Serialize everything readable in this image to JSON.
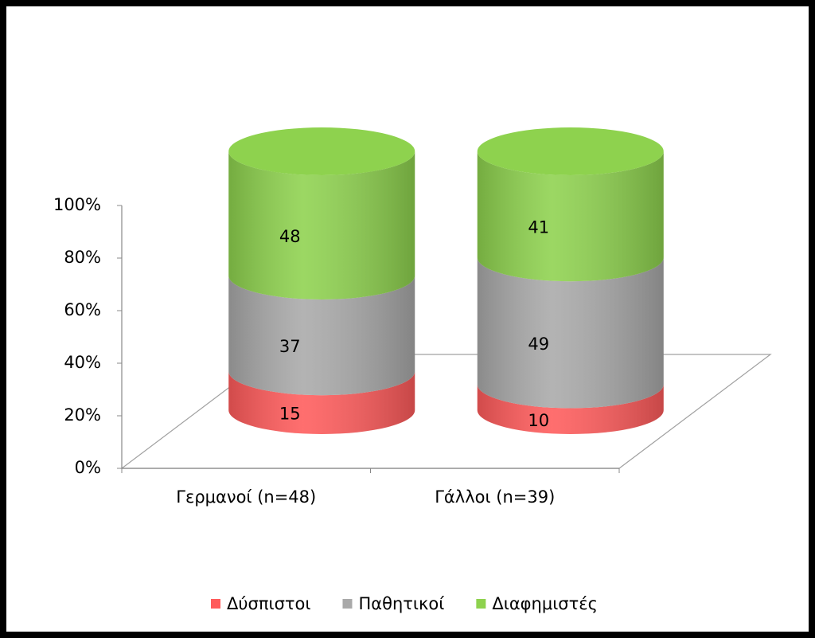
{
  "chart_data": {
    "type": "cylinder",
    "categories": [
      "Γερμανοί (n=48)",
      "Γάλλοι (n=39)"
    ],
    "series": [
      {
        "name": "Δύσπιστοι",
        "color": "#ff5b5b",
        "values": [
          15,
          10
        ]
      },
      {
        "name": "Παθητικοί",
        "color": "#a9a9a9",
        "values": [
          37,
          49
        ]
      },
      {
        "name": "Διαφημιστές",
        "color": "#8ed24e",
        "values": [
          48,
          41
        ]
      }
    ],
    "ylim": [
      0,
      100
    ],
    "yticks": [
      {
        "value": 0,
        "label": "0%"
      },
      {
        "value": 20,
        "label": "20%"
      },
      {
        "value": 40,
        "label": "40%"
      },
      {
        "value": 60,
        "label": "60%"
      },
      {
        "value": 80,
        "label": "80%"
      },
      {
        "value": 100,
        "label": "100%"
      }
    ],
    "legend": "bottom"
  }
}
